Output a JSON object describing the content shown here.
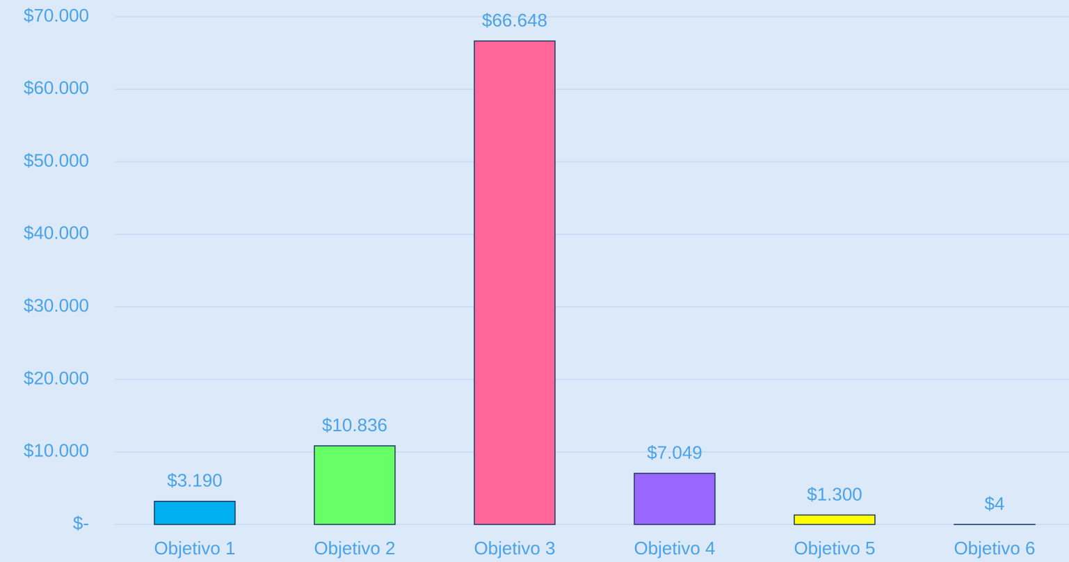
{
  "chart_data": {
    "type": "bar",
    "categories": [
      "Objetivo 1",
      "Objetivo 2",
      "Objetivo 3",
      "Objetivo 4",
      "Objetivo 5",
      "Objetivo 6"
    ],
    "values": [
      3190,
      10836,
      66648,
      7049,
      1300,
      4
    ],
    "value_labels": [
      "$3.190",
      "$10.836",
      "$66.648",
      "$7.049",
      "$1.300",
      "$4"
    ],
    "colors": [
      "#00b0f0",
      "#66ff66",
      "#ff6699",
      "#9966ff",
      "#ffff00",
      "#4472c4"
    ],
    "ylim": [
      0,
      70000
    ],
    "yticks": [
      {
        "value": 0,
        "label": "$-"
      },
      {
        "value": 10000,
        "label": "$10.000"
      },
      {
        "value": 20000,
        "label": "$20.000"
      },
      {
        "value": 30000,
        "label": "$30.000"
      },
      {
        "value": 40000,
        "label": "$40.000"
      },
      {
        "value": 50000,
        "label": "$50.000"
      },
      {
        "value": 60000,
        "label": "$60.000"
      },
      {
        "value": 70000,
        "label": "$70.000"
      }
    ],
    "grid": true
  }
}
